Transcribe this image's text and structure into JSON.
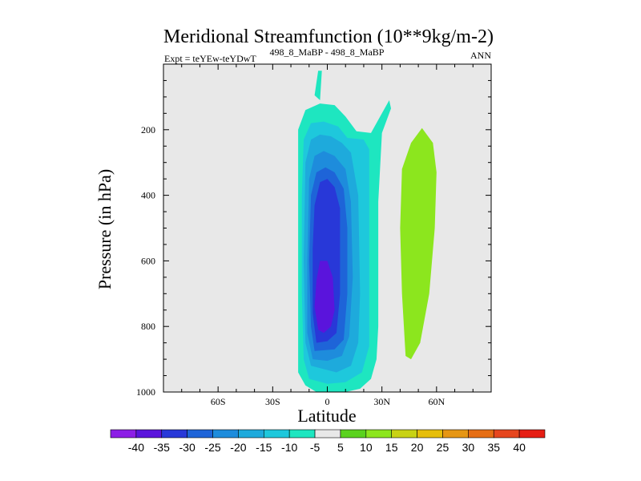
{
  "chart_data": {
    "type": "contour",
    "title": "Meridional Streamfunction (10**9kg/m-2)",
    "subtitle_left": "Expt = teYEw-teYDwT",
    "subtitle_center": "498_8_MaBP - 498_8_MaBP",
    "subtitle_right": "ANN",
    "xlabel": "Latitude",
    "ylabel": "Pressure (in hPa)",
    "xlim": [
      -90,
      90
    ],
    "ylim": [
      1000,
      0
    ],
    "x_ticks": [
      {
        "value": -60,
        "label": "60S"
      },
      {
        "value": -30,
        "label": "30S"
      },
      {
        "value": 0,
        "label": "0"
      },
      {
        "value": 30,
        "label": "30N"
      },
      {
        "value": 60,
        "label": "60N"
      }
    ],
    "y_ticks": [
      {
        "value": 200,
        "label": "200"
      },
      {
        "value": 400,
        "label": "400"
      },
      {
        "value": 600,
        "label": "600"
      },
      {
        "value": 800,
        "label": "800"
      },
      {
        "value": 1000,
        "label": "1000"
      }
    ],
    "background_color": "#e8e8e8",
    "contour_levels": [
      -40,
      -35,
      -30,
      -25,
      -20,
      -15,
      -10,
      -5,
      5,
      10,
      15,
      20,
      25,
      30,
      35,
      40
    ],
    "colorbar_colors": [
      "#8c1ee6",
      "#5a14dc",
      "#2838d8",
      "#1e64d8",
      "#1e8cdc",
      "#1eaadc",
      "#1ec8dc",
      "#1ee6c0",
      "#e8e8e8",
      "#5ad21e",
      "#8ce61e",
      "#c8d214",
      "#e6be0a",
      "#e69614",
      "#e66e14",
      "#e6461e",
      "#e61e14"
    ],
    "regions": [
      {
        "name": "negative-cell-outer",
        "level": -5,
        "color": "#1ee6c0",
        "polygon": [
          [
            -6,
            1000
          ],
          [
            -12,
            980
          ],
          [
            -16,
            940
          ],
          [
            -16,
            820
          ],
          [
            -16,
            500
          ],
          [
            -16,
            200
          ],
          [
            -12,
            140
          ],
          [
            -4,
            120
          ],
          [
            4,
            125
          ],
          [
            10,
            160
          ],
          [
            16,
            205
          ],
          [
            24,
            210
          ],
          [
            30,
            150
          ],
          [
            34,
            110
          ],
          [
            35,
            135
          ],
          [
            30,
            210
          ],
          [
            28,
            420
          ],
          [
            28,
            800
          ],
          [
            27,
            900
          ],
          [
            24,
            960
          ],
          [
            18,
            990
          ],
          [
            10,
            1000
          ],
          [
            0,
            1003
          ],
          [
            -6,
            1000
          ]
        ]
      },
      {
        "name": "negative-cell-lower-tail",
        "level": -5,
        "color": "#1ee6c0",
        "polygon": [
          [
            -7,
            95
          ],
          [
            -5,
            20
          ],
          [
            -3,
            20
          ],
          [
            -4,
            110
          ],
          [
            -7,
            95
          ]
        ]
      },
      {
        "name": "negative-cell-m10",
        "level": -10,
        "color": "#1ec8dc",
        "polygon": [
          [
            -10,
            960
          ],
          [
            -13,
            900
          ],
          [
            -14,
            700
          ],
          [
            -14,
            400
          ],
          [
            -13,
            230
          ],
          [
            -9,
            180
          ],
          [
            -2,
            175
          ],
          [
            6,
            190
          ],
          [
            11,
            225
          ],
          [
            20,
            230
          ],
          [
            23,
            260
          ],
          [
            23,
            600
          ],
          [
            23,
            860
          ],
          [
            19,
            940
          ],
          [
            10,
            970
          ],
          [
            0,
            975
          ],
          [
            -10,
            960
          ]
        ]
      },
      {
        "name": "negative-cell-m15",
        "level": -15,
        "color": "#1eaadc",
        "polygon": [
          [
            -9,
            920
          ],
          [
            -12,
            850
          ],
          [
            -13,
            600
          ],
          [
            -12,
            300
          ],
          [
            -9,
            230
          ],
          [
            -4,
            215
          ],
          [
            2,
            220
          ],
          [
            8,
            240
          ],
          [
            13,
            270
          ],
          [
            17,
            400
          ],
          [
            18,
            700
          ],
          [
            17,
            850
          ],
          [
            13,
            920
          ],
          [
            5,
            940
          ],
          [
            -9,
            920
          ]
        ]
      },
      {
        "name": "negative-cell-m20",
        "level": -20,
        "color": "#1e8cdc",
        "polygon": [
          [
            -8,
            900
          ],
          [
            -11,
            820
          ],
          [
            -11,
            600
          ],
          [
            -10,
            350
          ],
          [
            -7,
            280
          ],
          [
            -2,
            265
          ],
          [
            4,
            280
          ],
          [
            10,
            320
          ],
          [
            13,
            420
          ],
          [
            14,
            650
          ],
          [
            12,
            830
          ],
          [
            8,
            890
          ],
          [
            0,
            905
          ],
          [
            -8,
            900
          ]
        ]
      },
      {
        "name": "negative-cell-m25",
        "level": -25,
        "color": "#1e64d8",
        "polygon": [
          [
            -7,
            875
          ],
          [
            -9,
            800
          ],
          [
            -10,
            600
          ],
          [
            -9,
            400
          ],
          [
            -6,
            330
          ],
          [
            -1,
            315
          ],
          [
            4,
            330
          ],
          [
            9,
            380
          ],
          [
            11,
            500
          ],
          [
            11,
            700
          ],
          [
            9,
            840
          ],
          [
            4,
            870
          ],
          [
            -7,
            875
          ]
        ]
      },
      {
        "name": "negative-cell-m30",
        "level": -30,
        "color": "#2838d8",
        "polygon": [
          [
            -6,
            850
          ],
          [
            -8,
            760
          ],
          [
            -8,
            560
          ],
          [
            -7,
            430
          ],
          [
            -4,
            360
          ],
          [
            0,
            350
          ],
          [
            4,
            375
          ],
          [
            7,
            440
          ],
          [
            7,
            700
          ],
          [
            5,
            820
          ],
          [
            0,
            845
          ],
          [
            -6,
            850
          ]
        ]
      },
      {
        "name": "negative-cell-m35",
        "level": -35,
        "color": "#5a14dc",
        "polygon": [
          [
            -5,
            810
          ],
          [
            -7,
            740
          ],
          [
            -6,
            660
          ],
          [
            -4,
            600
          ],
          [
            0,
            600
          ],
          [
            3,
            650
          ],
          [
            4,
            750
          ],
          [
            2,
            800
          ],
          [
            -2,
            820
          ],
          [
            -5,
            810
          ]
        ]
      },
      {
        "name": "positive-cell-10",
        "level": 10,
        "color": "#8ce61e",
        "polygon": [
          [
            43,
            890
          ],
          [
            41,
            700
          ],
          [
            40,
            500
          ],
          [
            41,
            320
          ],
          [
            46,
            240
          ],
          [
            52,
            195
          ],
          [
            58,
            240
          ],
          [
            60,
            330
          ],
          [
            59,
            500
          ],
          [
            56,
            700
          ],
          [
            51,
            850
          ],
          [
            46,
            900
          ],
          [
            43,
            890
          ]
        ]
      }
    ]
  }
}
